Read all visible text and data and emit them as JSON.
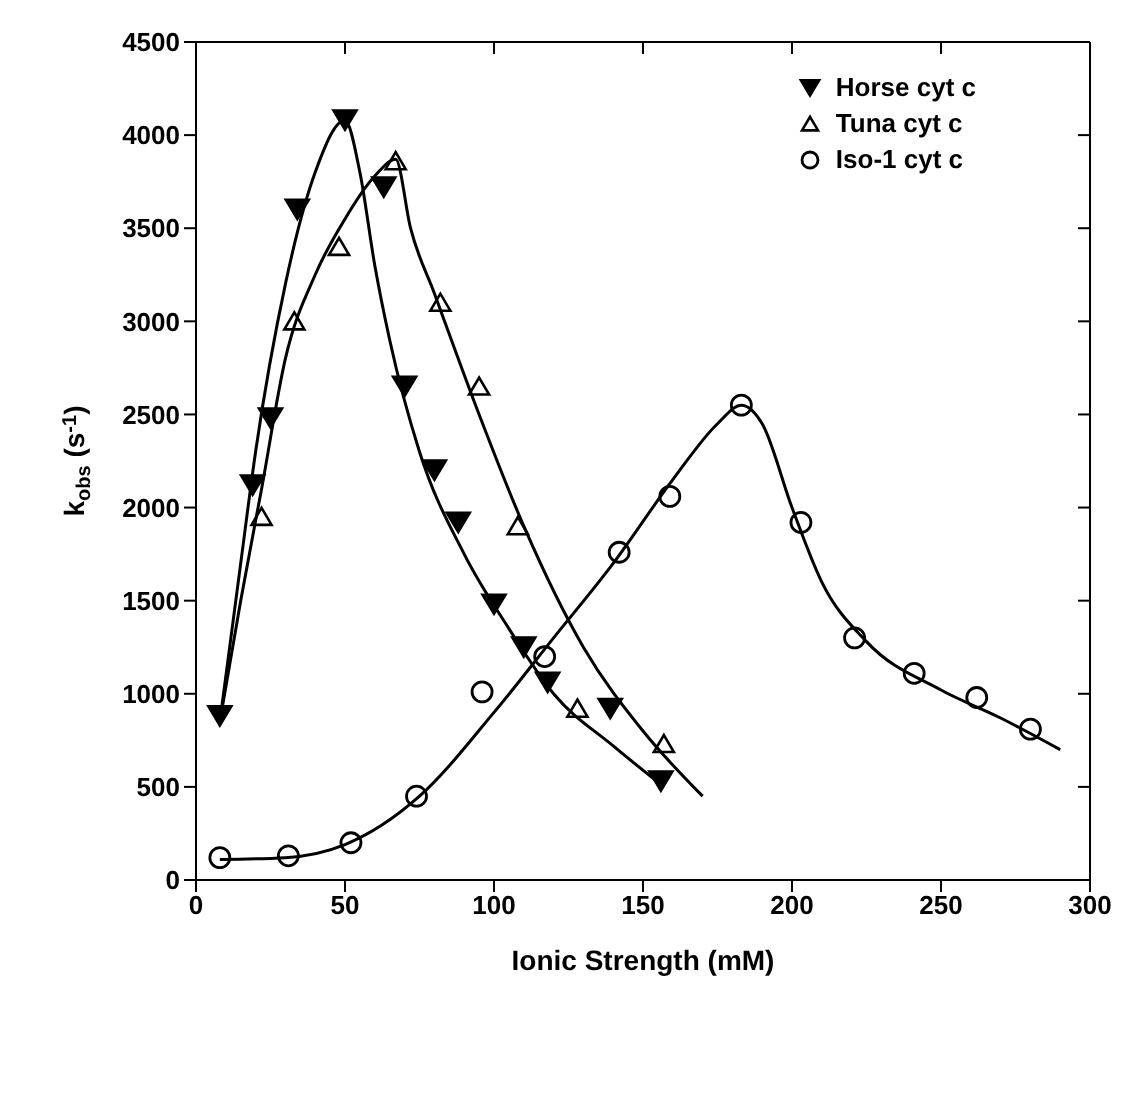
{
  "chart_data": {
    "type": "scatter",
    "xlabel": "Ionic Strength (mM)",
    "ylabel": "k$_{obs}$ (s$^{-1}$)",
    "xlim": [
      0,
      300
    ],
    "xticks": [
      0,
      50,
      100,
      150,
      200,
      250,
      300
    ],
    "ylim": [
      0,
      4500
    ],
    "yticks": [
      0,
      500,
      1000,
      1500,
      2000,
      2500,
      3000,
      3500,
      4000,
      4500
    ],
    "legend": "top right",
    "series": [
      {
        "name": "Horse cyt c",
        "marker": "triangle-down",
        "color": "#000000",
        "x": [
          8,
          19,
          25,
          34,
          50,
          63,
          70,
          80,
          88,
          100,
          110,
          118,
          139,
          156
        ],
        "values": [
          880,
          2120,
          2480,
          3600,
          4080,
          3720,
          2650,
          2200,
          1920,
          1480,
          1250,
          1060,
          920,
          530
        ]
      },
      {
        "name": "Tuna cyt c",
        "marker": "triangle",
        "color": "#000000",
        "x": [
          22,
          33,
          48,
          67,
          82,
          95,
          108,
          128,
          157
        ],
        "values": [
          1950,
          3000,
          3400,
          3860,
          3100,
          2650,
          1900,
          920,
          730
        ]
      },
      {
        "name": "Iso-1 cyt c",
        "marker": "circle",
        "color": "#000000",
        "x": [
          8,
          31,
          52,
          74,
          96,
          117,
          142,
          159,
          183,
          203,
          221,
          241,
          262,
          280
        ],
        "values": [
          120,
          130,
          200,
          450,
          1010,
          1200,
          1760,
          2060,
          2550,
          1920,
          1300,
          1110,
          980,
          810
        ]
      },
      {
        "type": "line",
        "marker": "none",
        "color": "#000000",
        "x": [
          8,
          15,
          20,
          30,
          40,
          50,
          55,
          60,
          65,
          75,
          90,
          105,
          120,
          140,
          157
        ],
        "values": [
          850,
          1700,
          2300,
          3200,
          3800,
          4080,
          3800,
          3300,
          2900,
          2300,
          1750,
          1350,
          1000,
          720,
          500
        ]
      },
      {
        "type": "line",
        "marker": "none",
        "color": "#000000",
        "x": [
          8,
          15,
          22,
          30,
          40,
          50,
          60,
          67,
          72,
          80,
          95,
          110,
          130,
          150,
          170
        ],
        "values": [
          850,
          1500,
          2100,
          2800,
          3250,
          3550,
          3780,
          3870,
          3500,
          3150,
          2500,
          1900,
          1250,
          800,
          450
        ]
      },
      {
        "type": "line",
        "marker": "none",
        "color": "#000000",
        "x": [
          8,
          30,
          50,
          75,
          100,
          120,
          140,
          160,
          175,
          183,
          190,
          200,
          210,
          225,
          250,
          270,
          290
        ],
        "values": [
          110,
          120,
          190,
          450,
          900,
          1300,
          1700,
          2150,
          2450,
          2550,
          2450,
          2000,
          1600,
          1280,
          1020,
          870,
          700
        ]
      }
    ]
  }
}
